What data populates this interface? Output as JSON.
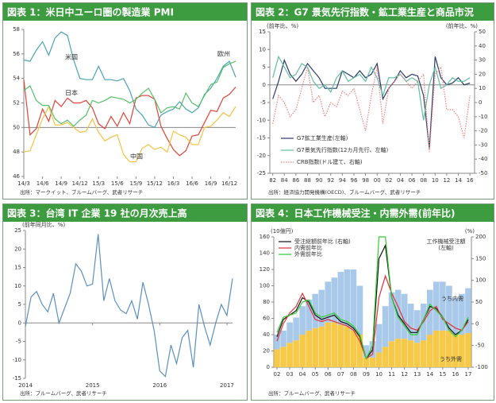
{
  "chart_data": [
    {
      "type": "line",
      "title": "図表 1：米日中ユーロ圏の製造業 PMI",
      "categories": [
        "14/3",
        null,
        null,
        "14/6",
        null,
        null,
        "14/9",
        null,
        null,
        "14/12",
        null,
        null,
        "15/3",
        null,
        null,
        "15/6",
        null,
        null,
        "15/9",
        null,
        null,
        "15/12",
        null,
        null,
        "16/3",
        null,
        null,
        "16/6",
        null,
        null,
        "16/9",
        null,
        null,
        "16/12",
        null
      ],
      "series": [
        {
          "name": "米国",
          "color": "#4aa3b5",
          "values": [
            55.5,
            55.4,
            56.3,
            57.0,
            55.9,
            57.3,
            57.8,
            57.5,
            55.5,
            54.0,
            53.9,
            53.9,
            55.0,
            53.9,
            53.9,
            53.8,
            54.0,
            53.0,
            51.5,
            51.0,
            50.2,
            50.0,
            51.0,
            51.3,
            51.5,
            52.1,
            51.5,
            51.2,
            51.6,
            52.7,
            53.2,
            54.0,
            55.0,
            55.4,
            54.1
          ]
        },
        {
          "name": "日本",
          "color": "#e0443a",
          "values": [
            53.9,
            49.4,
            49.9,
            51.5,
            50.5,
            52.2,
            51.7,
            52.4,
            52.0,
            52.0,
            52.2,
            51.6,
            50.3,
            49.9,
            50.9,
            50.1,
            51.2,
            50.3,
            52.4,
            52.6,
            52.6,
            52.3,
            50.1,
            49.1,
            48.2,
            47.7,
            48.1,
            49.3,
            49.4,
            50.4,
            51.4,
            51.3,
            52.4,
            52.7,
            53.3
          ]
        },
        {
          "name": "中国",
          "color": "#f5c342",
          "values": [
            48.0,
            48.1,
            49.4,
            50.7,
            51.7,
            50.2,
            50.2,
            50.4,
            50.0,
            49.6,
            49.7,
            50.7,
            49.6,
            48.9,
            49.2,
            49.4,
            47.8,
            47.2,
            47.2,
            48.3,
            48.6,
            48.2,
            48.4,
            48.0,
            49.7,
            49.4,
            49.2,
            48.6,
            48.6,
            50.0,
            50.1,
            50.6,
            51.2,
            50.9,
            51.7
          ]
        },
        {
          "name": "欧州",
          "color": "#55c06a",
          "values": [
            53.0,
            53.4,
            52.2,
            51.8,
            51.8,
            50.7,
            50.3,
            50.6,
            50.1,
            50.6,
            51.0,
            52.2,
            52.0,
            52.2,
            52.5,
            52.4,
            52.3,
            52.0,
            52.3,
            52.8,
            53.2,
            52.3,
            51.2,
            51.6,
            51.7,
            51.5,
            52.8,
            52.0,
            51.7,
            52.6,
            53.5,
            53.7,
            54.9,
            55.2,
            55.4
          ]
        }
      ],
      "ylim": [
        46,
        58
      ],
      "yticks": [
        46,
        48,
        50,
        52,
        54,
        56,
        58
      ],
      "reference_line": 50,
      "source": "出所：マークイット、ブルームバーグ、武者リサーチ"
    },
    {
      "type": "line",
      "title": "図表 2：G7 景気先行指数・鉱工業生産と商品市況",
      "x": [
        1982,
        1983,
        1984,
        1985,
        1986,
        1987,
        1988,
        1989,
        1990,
        1991,
        1992,
        1993,
        1994,
        1995,
        1996,
        1997,
        1998,
        1999,
        2000,
        2001,
        2002,
        2003,
        2004,
        2005,
        2006,
        2007,
        2008,
        2009,
        2010,
        2011,
        2012,
        2013,
        2014,
        2015,
        2016
      ],
      "xlim": [
        1981.5,
        2016.8
      ],
      "xticks": [
        {
          "value": 1982,
          "label": "82"
        },
        {
          "value": 1984,
          "label": "84"
        },
        {
          "value": 1986,
          "label": "86"
        },
        {
          "value": 1988,
          "label": "88"
        },
        {
          "value": 1990,
          "label": "90"
        },
        {
          "value": 1992,
          "label": "92"
        },
        {
          "value": 1994,
          "label": "94"
        },
        {
          "value": 1996,
          "label": "96"
        },
        {
          "value": 1998,
          "label": "98"
        },
        {
          "value": 2000,
          "label": "00"
        },
        {
          "value": 2002,
          "label": "02"
        },
        {
          "value": 2004,
          "label": "04"
        },
        {
          "value": 2006,
          "label": "06"
        },
        {
          "value": 2008,
          "label": "08"
        },
        {
          "value": 2010,
          "label": "10"
        },
        {
          "value": 2012,
          "label": "12"
        },
        {
          "value": 2014,
          "label": "14"
        },
        {
          "value": 2016,
          "label": "16"
        }
      ],
      "series": [
        {
          "name": "G7鉱工業生産(左軸)",
          "color": "#2b3a6b",
          "values": [
            -4,
            1,
            7,
            3,
            1,
            3,
            6,
            4,
            2,
            -1,
            -1,
            -1,
            4,
            3,
            2,
            4,
            2,
            3,
            6,
            -4,
            -1,
            1,
            4,
            2,
            3,
            2.5,
            -3,
            -18,
            8,
            2,
            0,
            0.5,
            2,
            0,
            0.5
          ]
        },
        {
          "name": "G7景気先行指数(12カ月先行、左軸)",
          "color": "#5fbf9f",
          "values": [
            2,
            8,
            5,
            2,
            3,
            6,
            5,
            1,
            -1,
            0,
            -2,
            2,
            4,
            1,
            2,
            3,
            1,
            5,
            2,
            -3,
            2,
            2,
            3,
            1,
            2,
            1,
            -10,
            0,
            5,
            -1,
            0,
            2,
            1,
            1,
            2
          ]
        },
        {
          "name": "CRB指数(ドル建て、右軸)",
          "color": "#f08080",
          "style": "dotted",
          "axis": "y2",
          "values": [
            -15,
            5,
            0,
            -10,
            -5,
            10,
            25,
            0,
            5,
            -10,
            0,
            -3,
            8,
            5,
            10,
            -5,
            -20,
            5,
            25,
            -15,
            10,
            15,
            20,
            15,
            10,
            15,
            20,
            -35,
            20,
            25,
            -5,
            -5,
            -10,
            -25,
            5
          ]
        }
      ],
      "ylim": [
        -25,
        15
      ],
      "yticks": [
        -25,
        -20,
        -15,
        -10,
        -5,
        0,
        5,
        10,
        15
      ],
      "y2lim": [
        -50,
        50
      ],
      "y2ticks": [
        -50,
        -40,
        -30,
        -20,
        -10,
        0,
        10,
        20,
        30,
        40,
        50
      ],
      "ylabel": "(前年比、%)",
      "y2label": "(前年比、%)",
      "reference_line": 0,
      "legend": "lower left",
      "source": "出所：経済協力開発機構(OECD)、ブルームバーグ、武者リサーチ"
    },
    {
      "type": "line",
      "title": "図表 3：台湾 IT 企業 19 社の月次売上高",
      "categories": [
        "2014",
        null,
        null,
        null,
        null,
        null,
        null,
        null,
        null,
        null,
        null,
        null,
        "2015",
        null,
        null,
        null,
        null,
        null,
        null,
        null,
        null,
        null,
        null,
        null,
        "2016",
        null,
        null,
        null,
        null,
        null,
        null,
        null,
        null,
        null,
        null,
        null,
        "2017",
        null
      ],
      "series": [
        {
          "name": null,
          "color": "#5b8fc0",
          "values": [
            -1,
            7,
            8.5,
            5,
            3,
            8,
            0,
            4,
            8,
            16,
            14,
            10,
            10.5,
            24,
            6,
            12,
            6,
            3.5,
            2.5,
            6,
            1,
            11,
            5,
            -2,
            -13,
            -14.5,
            -6,
            -11,
            -4,
            -2,
            -12,
            5,
            -1,
            -6,
            0,
            5,
            2,
            12
          ]
        }
      ],
      "ylim": [
        -15,
        25
      ],
      "yticks": [
        -15,
        -10,
        -5,
        0,
        5,
        10,
        15,
        20,
        25
      ],
      "ylabel": "(前年同月比、%)",
      "reference_line": 0,
      "source": "出所：ブルームバーグ、武者リサーチ"
    },
    {
      "type": "combo",
      "title": "図表 4：日本工作機械受注・内需外需(前年比)",
      "x": [
        2002,
        2002.5,
        2003,
        2003.5,
        2004,
        2004.5,
        2005,
        2005.5,
        2006,
        2006.5,
        2007,
        2007.5,
        2008,
        2008.5,
        2009,
        2009.5,
        2010,
        2010.5,
        2011,
        2011.5,
        2012,
        2012.5,
        2013,
        2013.5,
        2014,
        2014.5,
        2015,
        2015.5,
        2016,
        2016.5,
        2017
      ],
      "xlim": [
        2001.75,
        2017.25
      ],
      "xticks": [
        {
          "value": 2002,
          "label": "02"
        },
        {
          "value": 2003,
          "label": "03"
        },
        {
          "value": 2004,
          "label": "04"
        },
        {
          "value": 2005,
          "label": "05"
        },
        {
          "value": 2006,
          "label": "06"
        },
        {
          "value": 2007,
          "label": "07"
        },
        {
          "value": 2008,
          "label": "08"
        },
        {
          "value": 2009,
          "label": "09"
        },
        {
          "value": 2010,
          "label": "10"
        },
        {
          "value": 2011,
          "label": "11"
        },
        {
          "value": 2012,
          "label": "12"
        },
        {
          "value": 2013,
          "label": "13"
        },
        {
          "value": 2014,
          "label": "14"
        },
        {
          "value": 2015,
          "label": "15"
        },
        {
          "value": 2016,
          "label": "16"
        },
        {
          "value": 2017,
          "label": "17"
        }
      ],
      "bar_series": [
        {
          "name": "うち内需",
          "color": "#f7c948",
          "values": [
            22,
            25,
            30,
            33,
            40,
            45,
            48,
            50,
            55,
            55,
            52,
            50,
            45,
            40,
            12,
            12,
            18,
            25,
            32,
            35,
            35,
            33,
            30,
            33,
            40,
            45,
            45,
            45,
            40,
            40,
            42
          ]
        },
        {
          "name": "うち外需",
          "color": "#a9c9ea",
          "values": [
            18,
            20,
            25,
            28,
            35,
            38,
            42,
            45,
            50,
            55,
            65,
            70,
            75,
            60,
            15,
            20,
            35,
            50,
            60,
            60,
            55,
            45,
            40,
            45,
            55,
            60,
            60,
            55,
            45,
            50,
            55
          ]
        }
      ],
      "series": [
        {
          "name": "受注総額前年比 (右軸)",
          "color": "#111111",
          "axis": "y2",
          "values": [
            -30,
            10,
            20,
            30,
            60,
            50,
            20,
            10,
            15,
            20,
            5,
            0,
            -10,
            -30,
            -80,
            -60,
            150,
            180,
            60,
            20,
            0,
            -20,
            -20,
            10,
            40,
            35,
            15,
            -10,
            -25,
            -15,
            10
          ]
        },
        {
          "name": "内需前年比",
          "color": "#e0303a",
          "axis": "y2",
          "values": [
            -40,
            0,
            25,
            40,
            70,
            40,
            10,
            5,
            10,
            5,
            0,
            -5,
            -15,
            -40,
            -80,
            -70,
            60,
            110,
            70,
            40,
            5,
            -10,
            -15,
            5,
            30,
            40,
            10,
            0,
            -10,
            -15,
            5
          ]
        },
        {
          "name": "外需前年比",
          "color": "#33cc33",
          "axis": "y2",
          "values": [
            -20,
            15,
            20,
            25,
            50,
            55,
            25,
            15,
            20,
            25,
            10,
            5,
            -5,
            -25,
            -80,
            -50,
            200,
            200,
            60,
            15,
            -5,
            -25,
            -25,
            10,
            45,
            30,
            15,
            -15,
            -30,
            -15,
            15
          ]
        }
      ],
      "ylim": [
        0,
        160
      ],
      "yticks": [
        0,
        20,
        40,
        60,
        80,
        100,
        120,
        140,
        160
      ],
      "y2lim": [
        -100,
        200
      ],
      "y2ticks": [
        -100,
        -50,
        0,
        50,
        100,
        150,
        200
      ],
      "ylabel": "(10億円)",
      "y2label": "(%)",
      "annotations": [
        "工作機械受注額",
        "(左軸)"
      ],
      "legend": "upper left",
      "source": "出所：ブルームバーグ、武者リサーチ"
    }
  ]
}
